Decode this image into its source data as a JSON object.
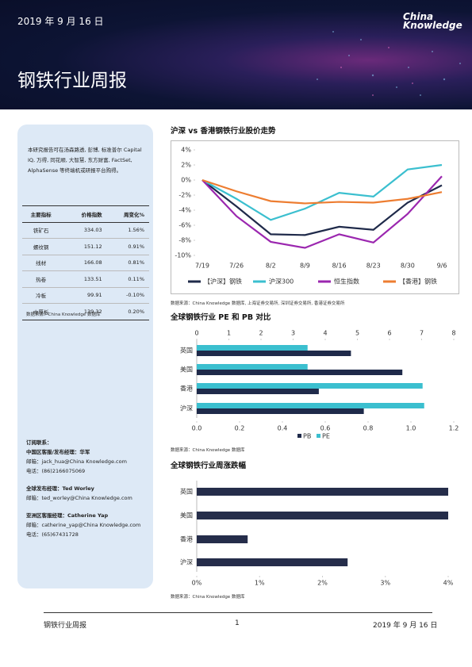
{
  "header": {
    "date": "2019 年 9 月 16 日",
    "logo_line1": "China",
    "logo_line2": "Knowledge",
    "title": "钢铁行业周报"
  },
  "sidebar": {
    "intro": "本研究报告可在汤森路透, 彭博, 标准普尔 Capital IQ, 万得, 同花顺, 大智慧, 东方财富, FactSet, AlphaSense 等终端机或研报平台购得。",
    "table": {
      "header": [
        "主要指标",
        "价格指数",
        "周变化%"
      ],
      "rows": [
        [
          "铁矿石",
          "334.03",
          "1.56%"
        ],
        [
          "螺纹钢",
          "151.12",
          "0.91%"
        ],
        [
          "线材",
          "166.08",
          "0.81%"
        ],
        [
          "热卷",
          "133.51",
          "0.11%"
        ],
        [
          "冷板",
          "99.91",
          "-0.10%"
        ],
        [
          "中厚板",
          "139.32",
          "0.20%"
        ]
      ]
    },
    "source": "数据来源：China Knowledge 数据库",
    "contacts": {
      "title": "订阅联系：",
      "groups": [
        {
          "role": "中国区客服/发布经理：华军",
          "email": "邮箱：jack_hua@China Knowledge.com",
          "phone": "电话：(86)2166075069"
        },
        {
          "role": "全球发布经理：Ted Worley",
          "email": "邮箱：ted_worley@China Knowledge.com"
        },
        {
          "role": "亚洲区客服经理：Catherine Yap",
          "email": "邮箱：catherine_yap@China Knowledge.com",
          "phone": "电话：(65)67431728"
        }
      ]
    }
  },
  "chart_data": [
    {
      "type": "line",
      "title": "沪深 vs 香港钢铁行业股价走势",
      "source": "数据来源：China Knowledge 数据库, 上海证券交易所, 深圳证券交易所, 香港证券交易所",
      "categories": [
        "7/19",
        "7/26",
        "8/2",
        "8/9",
        "8/16",
        "8/23",
        "8/30",
        "9/6"
      ],
      "ylim": [
        -10,
        4
      ],
      "yticks": [
        {
          "value": 4,
          "label": "4%"
        },
        {
          "value": 2,
          "label": "2%"
        },
        {
          "value": 0,
          "label": "0%"
        },
        {
          "value": -2,
          "label": "-2%"
        },
        {
          "value": -4,
          "label": "-4%"
        },
        {
          "value": -6,
          "label": "-6%"
        },
        {
          "value": -8,
          "label": "-8%"
        },
        {
          "value": -10,
          "label": "-10%"
        }
      ],
      "grid": false,
      "series": [
        {
          "name": "【沪深】钢铁",
          "color": "#1f2a4a",
          "values": [
            0,
            -3.5,
            -7.2,
            -7.3,
            -6.2,
            -6.6,
            -3.0,
            -0.7
          ]
        },
        {
          "name": "沪深300",
          "color": "#3bbfcf",
          "values": [
            0,
            -2.5,
            -5.3,
            -3.8,
            -1.7,
            -2.2,
            1.4,
            2.0
          ]
        },
        {
          "name": "恒生指数",
          "color": "#9b27af",
          "values": [
            0,
            -4.8,
            -8.2,
            -9.0,
            -7.2,
            -8.3,
            -4.5,
            0.5
          ]
        },
        {
          "name": "【香港】钢铁",
          "color": "#ed7d31",
          "values": [
            0,
            -1.5,
            -2.8,
            -3.1,
            -2.9,
            -3.0,
            -2.5,
            -1.6
          ]
        }
      ]
    },
    {
      "type": "hbar",
      "title": "全球钢铁行业 PE 和 PB 对比",
      "source": "数据来源：China Knowledge 数据库",
      "categories": [
        "英国",
        "美国",
        "香港",
        "沪深"
      ],
      "xlim": [
        0,
        1.2
      ],
      "xticks": [
        {
          "value": 0,
          "label": "0.0"
        },
        0.2,
        0.4,
        0.6,
        0.8,
        {
          "value": 1,
          "label": "1.0"
        },
        1.2
      ],
      "x2lim": [
        0,
        8
      ],
      "x2ticks": [
        0,
        1,
        2,
        3,
        4,
        5,
        6,
        7,
        8
      ],
      "series": [
        {
          "name": "PB",
          "color": "#1f2a4a",
          "values": [
            0.72,
            0.96,
            0.57,
            0.78
          ]
        },
        {
          "name": "PE",
          "color": "#3bbfcf",
          "axis": "x2",
          "values": [
            3.45,
            3.45,
            7.03,
            7.08
          ]
        }
      ]
    },
    {
      "type": "hbar",
      "title": "全球钢铁行业周涨跌幅",
      "source": "数据来源：China Knowledge 数据库",
      "categories": [
        "英国",
        "美国",
        "香港",
        "沪深"
      ],
      "xlim": [
        0,
        4
      ],
      "xticks": [
        {
          "value": 0,
          "label": "0%"
        },
        {
          "value": 1,
          "label": "1%"
        },
        {
          "value": 2,
          "label": "2%"
        },
        {
          "value": 3,
          "label": "3%"
        },
        {
          "value": 4,
          "label": "4%"
        }
      ],
      "color": "#252d4a",
      "values": [
        4.0,
        4.0,
        0.81,
        2.4
      ]
    }
  ],
  "footer": {
    "left": "钢铁行业周报",
    "page": "1",
    "right": "2019 年 9 月 16 日"
  }
}
